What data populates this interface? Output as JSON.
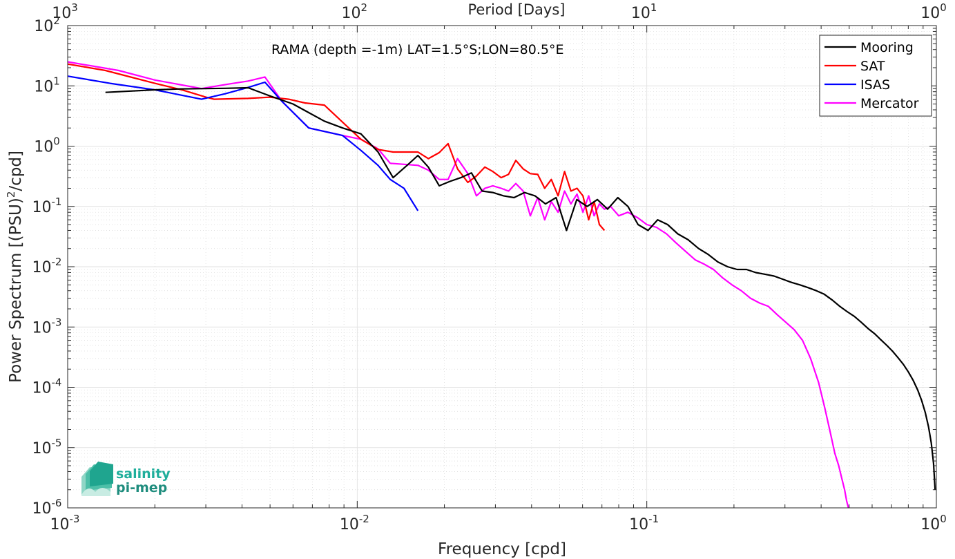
{
  "chart_data": {
    "type": "line",
    "xlabel": "Frequency [cpd]",
    "ylabel": "Power Spectrum [(PSU)",
    "ylabel_sup": "2",
    "ylabel_suffix": "/cpd]",
    "top_xlabel": "Period [Days]",
    "title": "",
    "annotation": "RAMA (depth =-1m) LAT=1.5°S;LON=80.5°E",
    "xscale": "log",
    "yscale": "log",
    "xlim": [
      0.001,
      1
    ],
    "ylim": [
      1e-06,
      100
    ],
    "grid": true,
    "legend_position": "top-right",
    "x_ticks": [
      {
        "value": 0.001,
        "base": "10",
        "exp": "-3"
      },
      {
        "value": 0.01,
        "base": "10",
        "exp": "-2"
      },
      {
        "value": 0.1,
        "base": "10",
        "exp": "-1"
      },
      {
        "value": 1,
        "base": "10",
        "exp": "0"
      }
    ],
    "y_ticks": [
      {
        "value": 1e-06,
        "base": "10",
        "exp": "-6"
      },
      {
        "value": 1e-05,
        "base": "10",
        "exp": "-5"
      },
      {
        "value": 0.0001,
        "base": "10",
        "exp": "-4"
      },
      {
        "value": 0.001,
        "base": "10",
        "exp": "-3"
      },
      {
        "value": 0.01,
        "base": "10",
        "exp": "-2"
      },
      {
        "value": 0.1,
        "base": "10",
        "exp": "-1"
      },
      {
        "value": 1,
        "base": "10",
        "exp": "0"
      },
      {
        "value": 10,
        "base": "10",
        "exp": "1"
      },
      {
        "value": 100,
        "base": "10",
        "exp": "2"
      }
    ],
    "top_ticks": [
      {
        "value": 0.001,
        "base": "10",
        "exp": "3"
      },
      {
        "value": 0.01,
        "base": "10",
        "exp": "2"
      },
      {
        "value": 0.1,
        "base": "10",
        "exp": "1"
      },
      {
        "value": 1,
        "base": "10",
        "exp": "0"
      }
    ],
    "series": [
      {
        "name": "Mooring",
        "color": "#000000",
        "x": [
          0.00135,
          0.00165,
          0.002,
          0.00245,
          0.003,
          0.0035,
          0.0042,
          0.005,
          0.006,
          0.0068,
          0.0077,
          0.0089,
          0.0103,
          0.0118,
          0.0133,
          0.015,
          0.0162,
          0.0176,
          0.0192,
          0.0209,
          0.0228,
          0.0248,
          0.027,
          0.0294,
          0.032,
          0.0348,
          0.0378,
          0.0411,
          0.0447,
          0.0486,
          0.0528,
          0.0573,
          0.0622,
          0.0675,
          0.0732,
          0.0794,
          0.0861,
          0.0933,
          0.101,
          0.109,
          0.118,
          0.128,
          0.139,
          0.151,
          0.163,
          0.176,
          0.19,
          0.205,
          0.221,
          0.238,
          0.256,
          0.275,
          0.295,
          0.316,
          0.338,
          0.361,
          0.385,
          0.41,
          0.437,
          0.464,
          0.492,
          0.521,
          0.55,
          0.58,
          0.611,
          0.642,
          0.673,
          0.705,
          0.737,
          0.769,
          0.8,
          0.832,
          0.862,
          0.89,
          0.916,
          0.94,
          0.96,
          0.978,
          0.99
        ],
        "y": [
          7.8,
          8.2,
          8.6,
          8.9,
          9.0,
          9.1,
          9.3,
          6.8,
          5.0,
          3.6,
          2.6,
          2.0,
          1.6,
          0.8,
          0.3,
          0.5,
          0.7,
          0.45,
          0.22,
          0.26,
          0.3,
          0.36,
          0.18,
          0.17,
          0.15,
          0.14,
          0.17,
          0.15,
          0.11,
          0.14,
          0.04,
          0.13,
          0.1,
          0.13,
          0.09,
          0.14,
          0.1,
          0.05,
          0.04,
          0.06,
          0.05,
          0.035,
          0.028,
          0.02,
          0.016,
          0.012,
          0.01,
          0.009,
          0.009,
          0.008,
          0.0075,
          0.007,
          0.0062,
          0.0055,
          0.005,
          0.0045,
          0.004,
          0.0035,
          0.0028,
          0.0022,
          0.0018,
          0.0015,
          0.0012,
          0.00095,
          0.00078,
          0.00062,
          0.0005,
          0.0004,
          0.00031,
          0.00024,
          0.00018,
          0.00013,
          9e-05,
          6e-05,
          3.8e-05,
          2.2e-05,
          1.2e-05,
          5.5e-06,
          2e-06
        ]
      },
      {
        "name": "SAT",
        "color": "#ff0000",
        "x": [
          0.001,
          0.00135,
          0.00165,
          0.002,
          0.0025,
          0.003,
          0.0032,
          0.0042,
          0.005,
          0.0058,
          0.0066,
          0.0077,
          0.0089,
          0.0103,
          0.0118,
          0.0133,
          0.015,
          0.0162,
          0.0176,
          0.0192,
          0.0206,
          0.0222,
          0.0241,
          0.0258,
          0.0276,
          0.0294,
          0.0314,
          0.0333,
          0.0353,
          0.0374,
          0.0396,
          0.042,
          0.0444,
          0.0468,
          0.0494,
          0.052,
          0.0547,
          0.0574,
          0.0602,
          0.063,
          0.0658,
          0.0686,
          0.0714
        ],
        "y": [
          23.0,
          18.0,
          14.0,
          11.0,
          8.5,
          6.5,
          6.0,
          6.2,
          6.5,
          6.0,
          5.2,
          4.8,
          2.5,
          1.3,
          0.88,
          0.8,
          0.8,
          0.8,
          0.62,
          0.78,
          1.1,
          0.42,
          0.25,
          0.32,
          0.45,
          0.38,
          0.3,
          0.34,
          0.58,
          0.42,
          0.35,
          0.34,
          0.2,
          0.28,
          0.15,
          0.38,
          0.18,
          0.2,
          0.15,
          0.06,
          0.12,
          0.05,
          0.04
        ]
      },
      {
        "name": "ISAS",
        "color": "#0000ff",
        "x": [
          0.001,
          0.0014,
          0.002,
          0.0029,
          0.0035,
          0.0042,
          0.0048,
          0.0055,
          0.0068,
          0.0089,
          0.0103,
          0.0118,
          0.013,
          0.0145,
          0.0162
        ],
        "y": [
          14.5,
          11.0,
          8.6,
          6.0,
          7.4,
          9.4,
          11.5,
          5.5,
          2.0,
          1.5,
          0.85,
          0.48,
          0.28,
          0.2,
          0.085
        ]
      },
      {
        "name": "Mercator",
        "color": "#ff00ff",
        "x": [
          0.001,
          0.0015,
          0.002,
          0.0029,
          0.0035,
          0.0042,
          0.0048,
          0.0055,
          0.0068,
          0.0089,
          0.0103,
          0.0118,
          0.013,
          0.0145,
          0.0162,
          0.0176,
          0.0192,
          0.0206,
          0.0222,
          0.0241,
          0.0258,
          0.0276,
          0.0294,
          0.0314,
          0.0333,
          0.0353,
          0.0374,
          0.0396,
          0.042,
          0.0444,
          0.0468,
          0.0494,
          0.052,
          0.0547,
          0.0574,
          0.0602,
          0.063,
          0.0658,
          0.0686,
          0.0714,
          0.075,
          0.08,
          0.086,
          0.093,
          0.1,
          0.108,
          0.117,
          0.126,
          0.136,
          0.147,
          0.158,
          0.17,
          0.183,
          0.197,
          0.212,
          0.228,
          0.245,
          0.263,
          0.282,
          0.302,
          0.323,
          0.345,
          0.368,
          0.392,
          0.412,
          0.43,
          0.446,
          0.46,
          0.472,
          0.482,
          0.49,
          0.497
        ],
        "y": [
          25.0,
          18.0,
          12.5,
          9.0,
          10.5,
          12.0,
          14.0,
          5.5,
          2.0,
          1.5,
          1.3,
          0.9,
          0.52,
          0.5,
          0.48,
          0.4,
          0.28,
          0.28,
          0.62,
          0.35,
          0.15,
          0.2,
          0.22,
          0.2,
          0.18,
          0.24,
          0.18,
          0.07,
          0.14,
          0.06,
          0.12,
          0.08,
          0.18,
          0.11,
          0.16,
          0.08,
          0.15,
          0.07,
          0.11,
          0.09,
          0.1,
          0.07,
          0.08,
          0.065,
          0.05,
          0.045,
          0.035,
          0.025,
          0.018,
          0.013,
          0.011,
          0.009,
          0.0065,
          0.005,
          0.004,
          0.003,
          0.0025,
          0.0022,
          0.0016,
          0.0012,
          0.0009,
          0.0006,
          0.0003,
          0.00012,
          4.5e-05,
          1.8e-05,
          8e-06,
          5e-06,
          3e-06,
          2e-06,
          1.3e-06,
          1e-06
        ]
      }
    ]
  },
  "logo": {
    "line1": "salinity",
    "line2": "pi-mep",
    "color": "#1fae9b"
  }
}
